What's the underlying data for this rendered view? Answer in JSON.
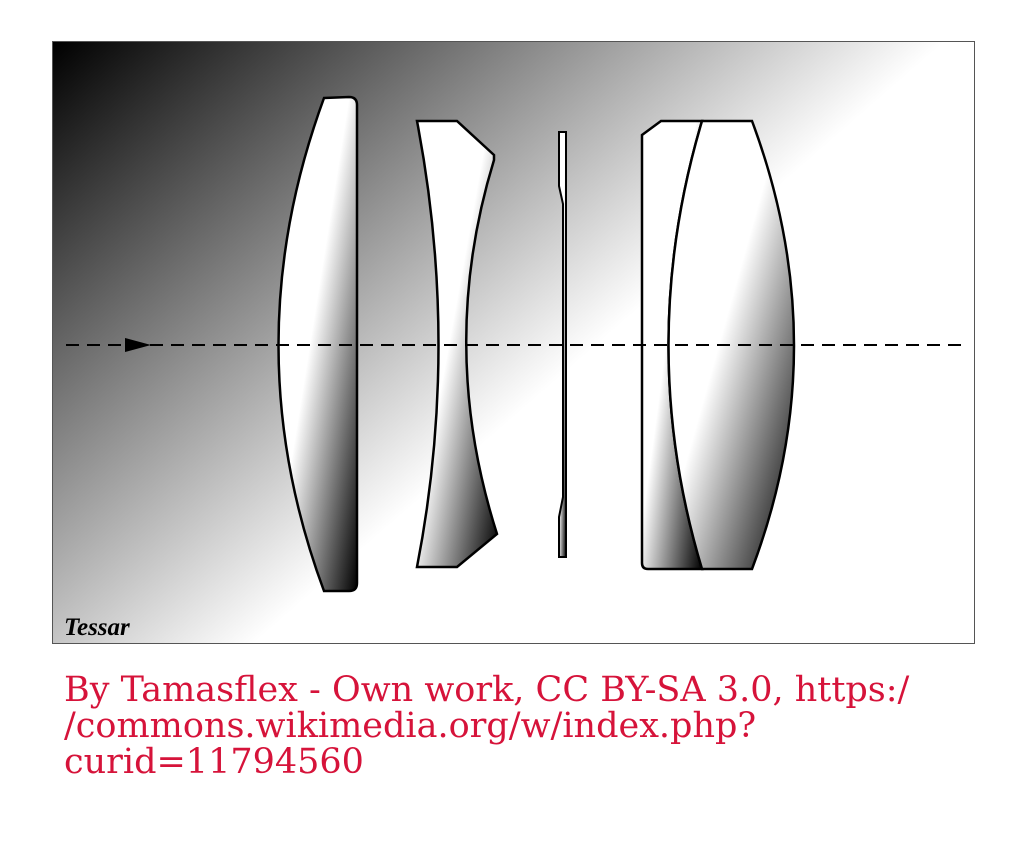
{
  "diagram": {
    "label": "Tessar",
    "colors": {
      "background_dark": "#000000",
      "background_light": "#ffffff",
      "lens_outline": "#000000",
      "optical_axis": "#000000"
    },
    "elements": [
      {
        "name": "front-element",
        "type": "plano-convex lens"
      },
      {
        "name": "second-element",
        "type": "biconcave lens"
      },
      {
        "name": "aperture-stop",
        "type": "diaphragm"
      },
      {
        "name": "rear-group-element-1",
        "type": "plano-concave lens"
      },
      {
        "name": "rear-group-element-2",
        "type": "biconvex lens"
      }
    ],
    "optical_axis": {
      "style": "dashed",
      "arrow_direction": "right"
    }
  },
  "caption": {
    "line1": "By Tamasflex - Own work, CC BY-SA 3.0, https:/",
    "line2": "/commons.wikimedia.org/w/index.php?",
    "line3": "curid=11794560",
    "color": "#d6133a"
  }
}
